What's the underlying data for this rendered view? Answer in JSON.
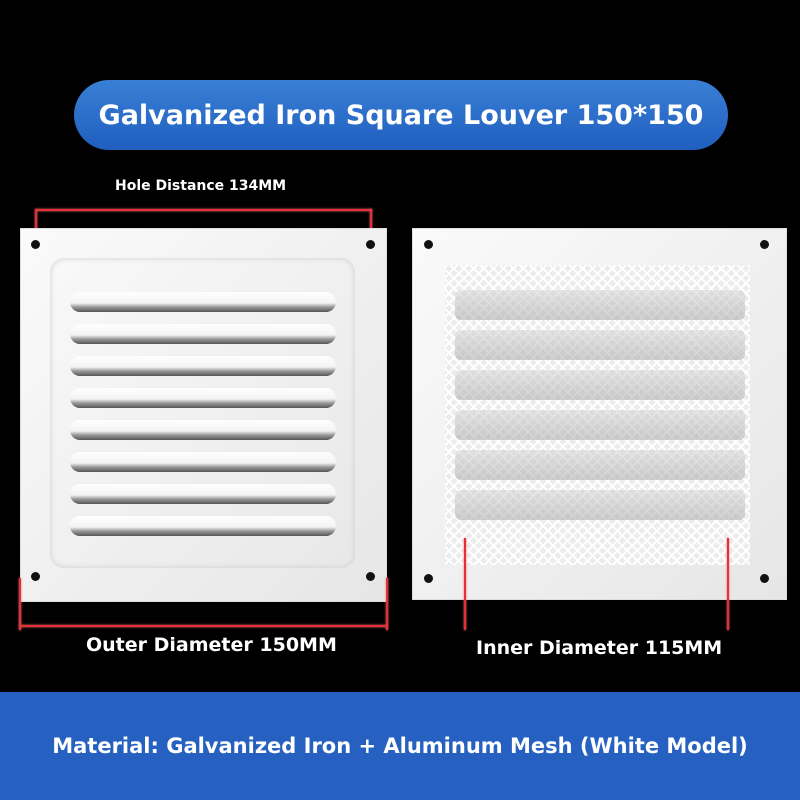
{
  "title": "Galvanized Iron Square Louver 150*150",
  "dimensions": {
    "hole_distance": "Hole Distance 134MM",
    "outer_diameter": "Outer Diameter 150MM",
    "inner_diameter": "Inner Diameter 115MM"
  },
  "material": "Material: Galvanized Iron + Aluminum Mesh (White Model)",
  "colors": {
    "banner": "#2a6fcc",
    "measure_line": "#e0303a",
    "background": "#000000"
  }
}
